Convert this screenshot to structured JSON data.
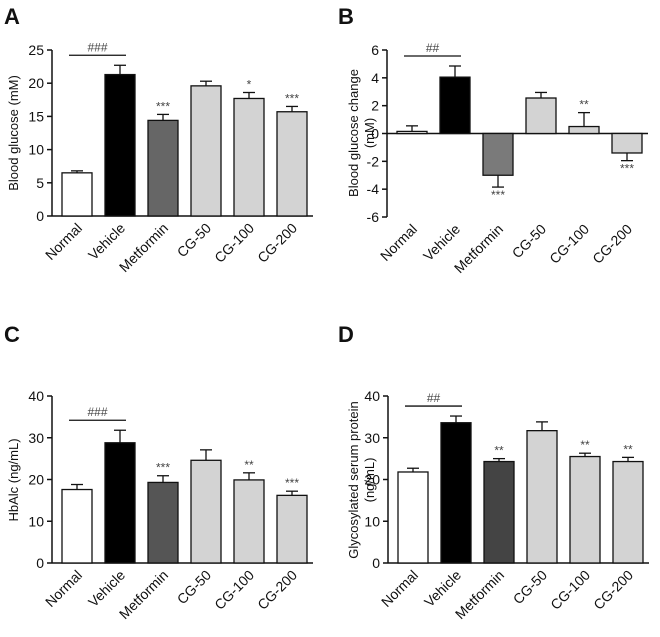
{
  "chart_data": [
    {
      "panel": "A",
      "type": "bar",
      "ylabel": "Blood glucose (mM)",
      "ylim": [
        0,
        25
      ],
      "yticks": [
        0,
        5,
        10,
        15,
        20,
        25
      ],
      "categories": [
        "Normal",
        "Vehicle",
        "Metformin",
        "CG-50",
        "CG-100",
        "CG-200"
      ],
      "values": [
        6.5,
        21.3,
        14.4,
        19.6,
        17.7,
        15.7
      ],
      "errors": [
        0.3,
        1.4,
        0.9,
        0.7,
        0.9,
        0.8
      ],
      "colors": [
        "#ffffff",
        "#000000",
        "#666666",
        "#d3d3d3",
        "#d3d3d3",
        "#d3d3d3"
      ],
      "significance": [
        "",
        "",
        "***",
        "",
        "*",
        "***"
      ],
      "comparison": {
        "from": 0,
        "to": 1,
        "label": "###"
      }
    },
    {
      "panel": "B",
      "type": "bar",
      "ylabel_lines": [
        "Blood glucose change",
        "(mM)"
      ],
      "ylim": [
        -6,
        6
      ],
      "yticks": [
        -6,
        -4,
        -2,
        0,
        2,
        4,
        6
      ],
      "categories": [
        "Normal",
        "Vehicle",
        "Metformin",
        "CG-50",
        "CG-100",
        "CG-200"
      ],
      "values": [
        0.15,
        4.05,
        -3.0,
        2.55,
        0.5,
        -1.4
      ],
      "errors": [
        0.4,
        0.8,
        0.85,
        0.4,
        1.0,
        0.55
      ],
      "colors": [
        "#ffffff",
        "#000000",
        "#7a7a7a",
        "#d3d3d3",
        "#d3d3d3",
        "#d3d3d3"
      ],
      "significance": [
        "",
        "",
        "***",
        "",
        "**",
        "***"
      ],
      "comparison": {
        "from": 0,
        "to": 1,
        "label": "##"
      }
    },
    {
      "panel": "C",
      "type": "bar",
      "ylabel": "HbAlc (ng/mL)",
      "ylim": [
        0,
        40
      ],
      "yticks": [
        0,
        10,
        20,
        30,
        40
      ],
      "categories": [
        "Normal",
        "Vehicle",
        "Metformin",
        "CG-50",
        "CG-100",
        "CG-200"
      ],
      "values": [
        17.6,
        28.8,
        19.3,
        24.6,
        19.9,
        16.2
      ],
      "errors": [
        1.2,
        3.0,
        1.6,
        2.5,
        1.7,
        1.0
      ],
      "colors": [
        "#ffffff",
        "#000000",
        "#555555",
        "#d3d3d3",
        "#d3d3d3",
        "#d3d3d3"
      ],
      "significance": [
        "",
        "",
        "***",
        "",
        "**",
        "***"
      ],
      "comparison": {
        "from": 0,
        "to": 1,
        "label": "###"
      }
    },
    {
      "panel": "D",
      "type": "bar",
      "ylabel_lines": [
        "Glycosylated serum protein",
        "(ng/mL)"
      ],
      "ylim": [
        0,
        40
      ],
      "yticks": [
        0,
        10,
        20,
        30,
        40
      ],
      "categories": [
        "Normal",
        "Vehicle",
        "Metformin",
        "CG-50",
        "CG-100",
        "CG-200"
      ],
      "values": [
        21.8,
        33.6,
        24.3,
        31.7,
        25.5,
        24.3
      ],
      "errors": [
        0.9,
        1.6,
        0.7,
        2.1,
        0.8,
        1.0
      ],
      "colors": [
        "#ffffff",
        "#000000",
        "#444444",
        "#d3d3d3",
        "#d3d3d3",
        "#d3d3d3"
      ],
      "significance": [
        "",
        "",
        "**",
        "",
        "**",
        "**"
      ],
      "comparison": {
        "from": 0,
        "to": 1,
        "label": "##"
      }
    }
  ]
}
